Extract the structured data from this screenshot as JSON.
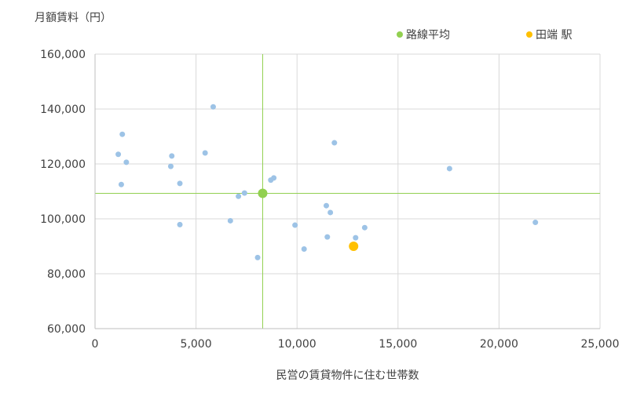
{
  "chart_data": {
    "type": "scatter",
    "ylabel": "月額賃料（円）",
    "xlabel": "民営の賃貸物件に住む世帯数",
    "xlim": [
      0,
      25000
    ],
    "ylim": [
      60000,
      160000
    ],
    "x_ticks": [
      "0",
      "5,000",
      "10,000",
      "15,000",
      "20,000",
      "25,000"
    ],
    "x_tick_values": [
      0,
      5000,
      10000,
      15000,
      20000,
      25000
    ],
    "y_ticks": [
      "60,000",
      "80,000",
      "100,000",
      "120,000",
      "140,000",
      "160,000"
    ],
    "y_tick_values": [
      60000,
      80000,
      100000,
      120000,
      140000,
      160000
    ],
    "grid": true,
    "legend_position": "top-right",
    "series": [
      {
        "name": "",
        "color": "#9dc3e6",
        "points": [
          {
            "x": 1150,
            "y": 123500
          },
          {
            "x": 1350,
            "y": 130800
          },
          {
            "x": 1550,
            "y": 120600
          },
          {
            "x": 1300,
            "y": 112500
          },
          {
            "x": 3800,
            "y": 122900
          },
          {
            "x": 3750,
            "y": 119100
          },
          {
            "x": 4200,
            "y": 112900
          },
          {
            "x": 4200,
            "y": 97900
          },
          {
            "x": 5450,
            "y": 124000
          },
          {
            "x": 5850,
            "y": 140800
          },
          {
            "x": 6700,
            "y": 99300
          },
          {
            "x": 7100,
            "y": 108200
          },
          {
            "x": 7400,
            "y": 109400
          },
          {
            "x": 8050,
            "y": 85900
          },
          {
            "x": 8700,
            "y": 114100
          },
          {
            "x": 8850,
            "y": 114900
          },
          {
            "x": 9900,
            "y": 97700
          },
          {
            "x": 10350,
            "y": 89000
          },
          {
            "x": 11450,
            "y": 104800
          },
          {
            "x": 11500,
            "y": 93400
          },
          {
            "x": 11650,
            "y": 102300
          },
          {
            "x": 11850,
            "y": 127700
          },
          {
            "x": 12900,
            "y": 93100
          },
          {
            "x": 13350,
            "y": 96800
          },
          {
            "x": 17550,
            "y": 118300
          },
          {
            "x": 21800,
            "y": 98700
          }
        ]
      },
      {
        "name": "路線平均",
        "color": "#92d050",
        "points": [
          {
            "x": 8300,
            "y": 109300
          }
        ]
      },
      {
        "name": "田端 駅",
        "color": "#ffc000",
        "points": [
          {
            "x": 12800,
            "y": 90000
          }
        ]
      }
    ],
    "reference_lines": {
      "color": "#92d050",
      "x": 8300,
      "y": 109300
    },
    "colors": {
      "grid": "#d9d9d9",
      "axis": "#bfbfbf",
      "text": "#404040"
    }
  }
}
